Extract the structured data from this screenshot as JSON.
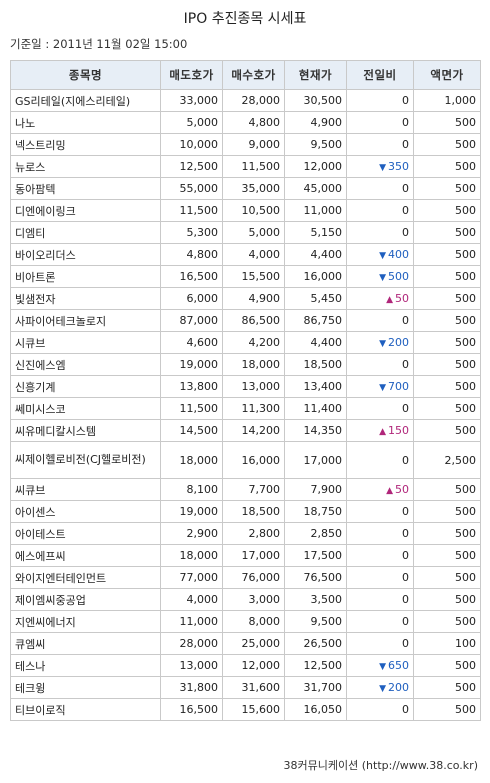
{
  "title": "IPO 추진종목 시세표",
  "base_date": "기준일 : 2011년 11월 02일 15:00",
  "headers": [
    "종목명",
    "매도호가",
    "매수호가",
    "현재가",
    "전일비",
    "액면가"
  ],
  "rows": [
    {
      "name": "GS리테일(지에스리테일)",
      "ask": "33,000",
      "bid": "28,000",
      "price": "30,500",
      "change": "0",
      "dir": "",
      "par": "1,000"
    },
    {
      "name": "나노",
      "ask": "5,000",
      "bid": "4,800",
      "price": "4,900",
      "change": "0",
      "dir": "",
      "par": "500"
    },
    {
      "name": "넥스트리밍",
      "ask": "10,000",
      "bid": "9,000",
      "price": "9,500",
      "change": "0",
      "dir": "",
      "par": "500"
    },
    {
      "name": "뉴로스",
      "ask": "12,500",
      "bid": "11,500",
      "price": "12,000",
      "change": "350",
      "dir": "down",
      "par": "500"
    },
    {
      "name": "동아팜텍",
      "ask": "55,000",
      "bid": "35,000",
      "price": "45,000",
      "change": "0",
      "dir": "",
      "par": "500"
    },
    {
      "name": "디엔에이링크",
      "ask": "11,500",
      "bid": "10,500",
      "price": "11,000",
      "change": "0",
      "dir": "",
      "par": "500"
    },
    {
      "name": "디엠티",
      "ask": "5,300",
      "bid": "5,000",
      "price": "5,150",
      "change": "0",
      "dir": "",
      "par": "500"
    },
    {
      "name": "바이오리더스",
      "ask": "4,800",
      "bid": "4,000",
      "price": "4,400",
      "change": "400",
      "dir": "down",
      "par": "500"
    },
    {
      "name": "비아트론",
      "ask": "16,500",
      "bid": "15,500",
      "price": "16,000",
      "change": "500",
      "dir": "down",
      "par": "500"
    },
    {
      "name": "빛샘전자",
      "ask": "6,000",
      "bid": "4,900",
      "price": "5,450",
      "change": "50",
      "dir": "up",
      "par": "500"
    },
    {
      "name": "사파이어테크놀로지",
      "ask": "87,000",
      "bid": "86,500",
      "price": "86,750",
      "change": "0",
      "dir": "",
      "par": "500"
    },
    {
      "name": "시큐브",
      "ask": "4,600",
      "bid": "4,200",
      "price": "4,400",
      "change": "200",
      "dir": "down",
      "par": "500"
    },
    {
      "name": "신진에스엠",
      "ask": "19,000",
      "bid": "18,000",
      "price": "18,500",
      "change": "0",
      "dir": "",
      "par": "500"
    },
    {
      "name": "신흥기계",
      "ask": "13,800",
      "bid": "13,000",
      "price": "13,400",
      "change": "700",
      "dir": "down",
      "par": "500"
    },
    {
      "name": "쎄미시스코",
      "ask": "11,500",
      "bid": "11,300",
      "price": "11,400",
      "change": "0",
      "dir": "",
      "par": "500"
    },
    {
      "name": "씨유메디칼시스템",
      "ask": "14,500",
      "bid": "14,200",
      "price": "14,350",
      "change": "150",
      "dir": "up",
      "par": "500"
    },
    {
      "name": "씨제이헬로비전(CJ헬로비전)",
      "ask": "18,000",
      "bid": "16,000",
      "price": "17,000",
      "change": "0",
      "dir": "",
      "par": "2,500",
      "wrap": true
    },
    {
      "name": "씨큐브",
      "ask": "8,100",
      "bid": "7,700",
      "price": "7,900",
      "change": "50",
      "dir": "up",
      "par": "500"
    },
    {
      "name": "아이센스",
      "ask": "19,000",
      "bid": "18,500",
      "price": "18,750",
      "change": "0",
      "dir": "",
      "par": "500"
    },
    {
      "name": "아이테스트",
      "ask": "2,900",
      "bid": "2,800",
      "price": "2,850",
      "change": "0",
      "dir": "",
      "par": "500"
    },
    {
      "name": "에스에프씨",
      "ask": "18,000",
      "bid": "17,000",
      "price": "17,500",
      "change": "0",
      "dir": "",
      "par": "500"
    },
    {
      "name": "와이지엔터테인먼트",
      "ask": "77,000",
      "bid": "76,000",
      "price": "76,500",
      "change": "0",
      "dir": "",
      "par": "500"
    },
    {
      "name": "제이엠씨중공업",
      "ask": "4,000",
      "bid": "3,000",
      "price": "3,500",
      "change": "0",
      "dir": "",
      "par": "500"
    },
    {
      "name": "지엔씨에너지",
      "ask": "11,000",
      "bid": "8,000",
      "price": "9,500",
      "change": "0",
      "dir": "",
      "par": "500"
    },
    {
      "name": "큐엠씨",
      "ask": "28,000",
      "bid": "25,000",
      "price": "26,500",
      "change": "0",
      "dir": "",
      "par": "100"
    },
    {
      "name": "테스나",
      "ask": "13,000",
      "bid": "12,000",
      "price": "12,500",
      "change": "650",
      "dir": "down",
      "par": "500"
    },
    {
      "name": "테크윙",
      "ask": "31,800",
      "bid": "31,600",
      "price": "31,700",
      "change": "200",
      "dir": "down",
      "par": "500"
    },
    {
      "name": "티브이로직",
      "ask": "16,500",
      "bid": "15,600",
      "price": "16,050",
      "change": "0",
      "dir": "",
      "par": "500"
    }
  ],
  "icons": {
    "down": "triangle-down-icon",
    "up": "triangle-up-icon"
  },
  "colors": {
    "down": "#1f5fbf",
    "up": "#b0267a",
    "header_bg": "#e7eef6"
  },
  "footer": "38커뮤니케이션 (http://www.38.co.kr)"
}
